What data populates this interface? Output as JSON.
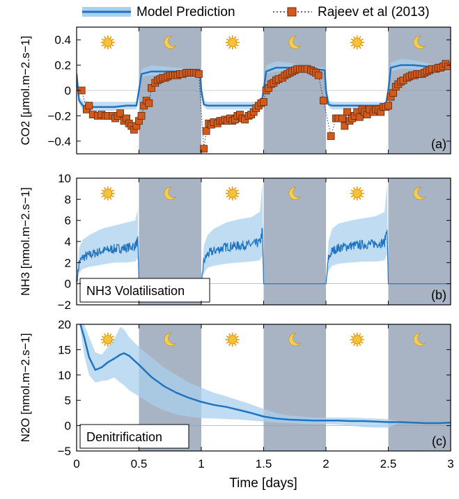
{
  "legend": {
    "model_label": "Model Prediction",
    "obs_label": "Rajeev et al (2013)",
    "model_color": "#1f73c0",
    "band_color": "#a9d0ee",
    "obs_fill": "#d45a1c",
    "obs_stroke": "#5a2a10"
  },
  "night_shade_color": "#a8b3c4",
  "sun_icon": "sun-icon",
  "moon_icon": "moon-icon",
  "xlabel": "Time [days]",
  "xticks": [
    "0",
    "0.5",
    "1",
    "1.5",
    "2",
    "2.5",
    "3"
  ],
  "chart_data": [
    {
      "type": "line",
      "panel": "(a)",
      "ylabel": "CO2 [μmol.m−2.s−1]",
      "ylim": [
        -0.5,
        0.5
      ],
      "yticks": [
        "0.4",
        "0.2",
        "0",
        "−0.2",
        "−0.4"
      ],
      "ytick_values": [
        0.4,
        0.2,
        0,
        -0.2,
        -0.4
      ],
      "xlim": [
        0,
        3
      ],
      "night_periods": [
        [
          0.5,
          1.0
        ],
        [
          1.5,
          2.0
        ],
        [
          2.5,
          3.0
        ]
      ],
      "series": [
        {
          "name": "Model Prediction",
          "x": [
            0,
            0.02,
            0.05,
            0.1,
            0.2,
            0.3,
            0.4,
            0.48,
            0.5,
            0.52,
            0.6,
            0.7,
            0.8,
            0.9,
            0.99,
            1.0,
            1.02,
            1.05,
            1.1,
            1.2,
            1.3,
            1.4,
            1.48,
            1.5,
            1.52,
            1.6,
            1.7,
            1.8,
            1.9,
            1.99,
            2.0,
            2.02,
            2.05,
            2.1,
            2.2,
            2.3,
            2.4,
            2.48,
            2.5,
            2.52,
            2.6,
            2.7,
            2.8,
            2.9,
            3.0
          ],
          "y": [
            0.13,
            -0.08,
            -0.12,
            -0.13,
            -0.13,
            -0.13,
            -0.12,
            -0.12,
            0.0,
            0.13,
            0.15,
            0.15,
            0.15,
            0.15,
            0.15,
            0.0,
            -0.11,
            -0.12,
            -0.12,
            -0.12,
            -0.12,
            -0.12,
            -0.12,
            0.0,
            0.15,
            0.18,
            0.18,
            0.17,
            0.17,
            0.16,
            0.0,
            -0.11,
            -0.12,
            -0.12,
            -0.12,
            -0.12,
            -0.12,
            -0.12,
            0.0,
            0.18,
            0.2,
            0.2,
            0.19,
            0.18,
            0.17
          ],
          "band_lower": [
            0.13,
            -0.1,
            -0.16,
            -0.16,
            -0.16,
            -0.16,
            -0.15,
            -0.15,
            -0.02,
            0.11,
            0.12,
            0.12,
            0.12,
            0.12,
            0.12,
            -0.02,
            -0.13,
            -0.15,
            -0.15,
            -0.15,
            -0.15,
            -0.15,
            -0.15,
            -0.02,
            0.13,
            0.15,
            0.15,
            0.15,
            0.15,
            0.14,
            -0.02,
            -0.13,
            -0.15,
            -0.15,
            -0.15,
            -0.15,
            -0.15,
            -0.15,
            -0.02,
            0.15,
            0.17,
            0.17,
            0.16,
            0.15,
            0.15
          ],
          "band_upper": [
            0.13,
            -0.06,
            -0.08,
            -0.09,
            -0.09,
            -0.09,
            -0.09,
            -0.09,
            0.02,
            0.17,
            0.2,
            0.19,
            0.18,
            0.17,
            0.17,
            0.02,
            -0.08,
            -0.09,
            -0.09,
            -0.09,
            -0.09,
            -0.09,
            -0.09,
            0.02,
            0.2,
            0.23,
            0.22,
            0.2,
            0.19,
            0.18,
            0.02,
            -0.08,
            -0.09,
            -0.09,
            -0.09,
            -0.09,
            -0.09,
            -0.09,
            0.02,
            0.22,
            0.25,
            0.24,
            0.22,
            0.2,
            0.19
          ]
        },
        {
          "name": "Rajeev et al (2013)",
          "x": [
            0.04,
            0.08,
            0.1,
            0.13,
            0.17,
            0.2,
            0.23,
            0.25,
            0.29,
            0.31,
            0.33,
            0.35,
            0.38,
            0.4,
            0.42,
            0.44,
            0.46,
            0.48,
            0.5,
            0.52,
            0.54,
            0.56,
            0.58,
            0.6,
            0.63,
            0.65,
            0.67,
            0.69,
            0.71,
            0.73,
            0.75,
            0.77,
            0.79,
            0.81,
            0.83,
            0.85,
            0.88,
            0.9,
            0.92,
            0.94,
            0.96,
            0.98,
            1.02,
            1.04,
            1.06,
            1.08,
            1.1,
            1.13,
            1.15,
            1.17,
            1.19,
            1.21,
            1.23,
            1.25,
            1.27,
            1.29,
            1.31,
            1.33,
            1.35,
            1.38,
            1.4,
            1.42,
            1.44,
            1.46,
            1.48,
            1.5,
            1.52,
            1.54,
            1.56,
            1.58,
            1.6,
            1.62,
            1.65,
            1.67,
            1.69,
            1.71,
            1.73,
            1.75,
            1.77,
            1.79,
            1.81,
            1.83,
            1.85,
            1.88,
            1.9,
            1.92,
            1.94,
            1.98,
            2.04,
            2.08,
            2.1,
            2.13,
            2.15,
            2.17,
            2.19,
            2.21,
            2.23,
            2.25,
            2.27,
            2.29,
            2.31,
            2.33,
            2.35,
            2.38,
            2.4,
            2.42,
            2.44,
            2.46,
            2.48,
            2.5,
            2.52,
            2.54,
            2.56,
            2.58,
            2.6,
            2.62,
            2.65,
            2.67,
            2.69,
            2.71,
            2.73,
            2.75,
            2.77,
            2.79,
            2.81,
            2.83,
            2.85,
            2.88,
            2.9,
            2.92,
            2.94,
            2.96,
            2.98
          ],
          "y": [
            0.0,
            -0.15,
            -0.12,
            -0.19,
            -0.2,
            -0.19,
            -0.2,
            -0.2,
            -0.2,
            -0.22,
            -0.2,
            -0.18,
            -0.24,
            -0.22,
            -0.26,
            -0.28,
            -0.31,
            -0.28,
            -0.24,
            -0.2,
            -0.12,
            -0.08,
            -0.1,
            0.02,
            0.06,
            0.08,
            0.09,
            0.1,
            0.1,
            0.11,
            0.12,
            0.12,
            0.12,
            0.12,
            0.13,
            0.13,
            0.14,
            0.14,
            0.14,
            0.14,
            0.14,
            0.13,
            -0.46,
            -0.32,
            -0.26,
            -0.27,
            -0.25,
            -0.26,
            -0.24,
            -0.24,
            -0.23,
            -0.24,
            -0.22,
            -0.24,
            -0.23,
            -0.2,
            -0.19,
            -0.22,
            -0.23,
            -0.2,
            -0.19,
            -0.17,
            -0.14,
            -0.12,
            -0.1,
            -0.09,
            0.0,
            0.02,
            0.05,
            0.06,
            0.08,
            0.09,
            0.1,
            0.12,
            0.13,
            0.14,
            0.15,
            0.16,
            0.17,
            0.17,
            0.17,
            0.17,
            0.17,
            0.16,
            0.15,
            0.14,
            0.12,
            -0.08,
            -0.36,
            -0.22,
            -0.22,
            -0.22,
            -0.28,
            -0.17,
            -0.24,
            -0.22,
            -0.2,
            -0.17,
            -0.21,
            -0.15,
            -0.17,
            -0.19,
            -0.15,
            -0.17,
            -0.15,
            -0.15,
            -0.17,
            -0.13,
            -0.13,
            -0.12,
            -0.05,
            -0.02,
            0.03,
            0.05,
            0.07,
            0.08,
            0.1,
            0.11,
            0.12,
            0.12,
            0.13,
            0.13,
            0.13,
            0.14,
            0.15,
            0.16,
            0.17,
            0.17,
            0.18,
            0.18,
            0.19,
            0.21,
            0.19
          ]
        }
      ]
    },
    {
      "type": "line",
      "panel": "(b)",
      "ylabel": "NH3 [nmol.m−2.s−1]",
      "annotation": "NH3 Volatilisation",
      "ylim": [
        -2,
        10
      ],
      "yticks": [
        "10",
        "8",
        "6",
        "4",
        "2",
        "0",
        "−2"
      ],
      "ytick_values": [
        10,
        8,
        6,
        4,
        2,
        0,
        -2
      ],
      "xlim": [
        0,
        3
      ],
      "night_periods": [
        [
          0.5,
          1.0
        ],
        [
          1.5,
          2.0
        ],
        [
          2.5,
          3.0
        ]
      ],
      "series": [
        {
          "name": "Model Prediction",
          "x": [
            0,
            0.02,
            0.05,
            0.1,
            0.2,
            0.3,
            0.4,
            0.47,
            0.49,
            0.5,
            0.6,
            0.7,
            0.8,
            0.9,
            1.0,
            1.02,
            1.05,
            1.1,
            1.2,
            1.3,
            1.4,
            1.47,
            1.49,
            1.5,
            1.6,
            1.7,
            1.8,
            1.9,
            2.0,
            2.02,
            2.05,
            2.1,
            2.2,
            2.3,
            2.4,
            2.47,
            2.49,
            2.5,
            2.6,
            2.7,
            2.8,
            2.9,
            3.0
          ],
          "y": [
            0,
            2.0,
            2.5,
            2.7,
            3.1,
            3.3,
            3.4,
            3.6,
            4.1,
            0,
            0,
            0,
            0,
            0,
            0,
            2.1,
            2.8,
            3.1,
            3.5,
            3.6,
            3.7,
            3.9,
            5.0,
            0,
            0,
            0,
            0,
            0,
            0,
            2.4,
            3.1,
            3.4,
            3.6,
            3.7,
            3.8,
            3.9,
            5.4,
            0,
            0,
            0,
            0,
            0,
            0
          ],
          "band_lower": [
            0,
            1.0,
            1.4,
            1.6,
            1.8,
            2.0,
            2.0,
            2.1,
            2.4,
            0,
            0,
            0,
            0,
            0,
            0,
            1.0,
            1.5,
            1.7,
            1.9,
            2.0,
            2.1,
            2.2,
            2.6,
            0,
            0,
            0,
            0,
            0,
            0,
            1.2,
            1.7,
            1.9,
            2.0,
            2.1,
            2.1,
            2.2,
            2.8,
            0,
            0,
            0,
            0,
            0,
            0
          ],
          "band_upper": [
            0,
            3.4,
            4.2,
            4.6,
            5.2,
            5.5,
            5.8,
            6.0,
            7.0,
            0,
            0,
            0,
            0,
            0,
            0,
            3.6,
            4.6,
            5.2,
            5.8,
            6.1,
            6.3,
            6.8,
            9.5,
            0,
            0,
            0,
            0,
            0,
            0,
            4.0,
            5.2,
            5.7,
            6.0,
            6.2,
            6.4,
            6.8,
            9.4,
            0,
            0,
            0,
            0,
            0,
            0
          ],
          "noise_amplitude": 0.45
        }
      ]
    },
    {
      "type": "line",
      "panel": "(c)",
      "ylabel": "N2O [nmol.m−2.s−1]",
      "annotation": "Denitrification",
      "ylim": [
        -5,
        20
      ],
      "yticks": [
        "20",
        "15",
        "10",
        "5",
        "0",
        "−5"
      ],
      "ytick_values": [
        20,
        15,
        10,
        5,
        0,
        -5
      ],
      "xlim": [
        0,
        3
      ],
      "night_periods": [
        [
          0.5,
          1.0
        ],
        [
          1.5,
          2.0
        ],
        [
          2.5,
          3.0
        ]
      ],
      "series": [
        {
          "name": "Model Prediction",
          "x": [
            0.03,
            0.06,
            0.1,
            0.15,
            0.2,
            0.25,
            0.3,
            0.35,
            0.38,
            0.42,
            0.5,
            0.6,
            0.7,
            0.8,
            0.9,
            1.0,
            1.1,
            1.2,
            1.3,
            1.4,
            1.5,
            1.6,
            1.7,
            1.8,
            1.9,
            2.0,
            2.1,
            2.2,
            2.3,
            2.4,
            2.5,
            2.6,
            2.7,
            2.8,
            2.9,
            3.0
          ],
          "y": [
            20,
            17.5,
            13.5,
            11.0,
            11.5,
            12.5,
            13.2,
            14.0,
            14.3,
            13.8,
            12.0,
            9.6,
            7.8,
            6.5,
            5.5,
            4.7,
            4.1,
            3.7,
            3.1,
            2.5,
            1.8,
            1.4,
            1.2,
            1.1,
            1.0,
            1.0,
            1.0,
            0.9,
            0.9,
            0.8,
            0.7,
            0.7,
            0.6,
            0.5,
            0.5,
            0.6
          ],
          "band_lower": [
            19,
            14.0,
            10.0,
            8.5,
            8.8,
            9.0,
            9.5,
            8.5,
            8.0,
            7.0,
            5.8,
            4.2,
            3.0,
            2.2,
            1.8,
            1.5,
            1.4,
            1.3,
            1.2,
            1.0,
            0.8,
            0.6,
            0.5,
            0.4,
            0.3,
            0.3,
            0.2,
            0.0,
            -0.3,
            -0.4,
            -0.4,
            0.6,
            0.5,
            0.4,
            0.4,
            0.5
          ],
          "band_upper": [
            20,
            20,
            17.5,
            14.5,
            14.0,
            15.5,
            17.0,
            19.5,
            19.0,
            17.5,
            15.5,
            13.5,
            11.5,
            10.0,
            8.5,
            7.5,
            6.5,
            5.8,
            5.0,
            4.2,
            3.3,
            2.5,
            2.0,
            1.8,
            1.6,
            1.6,
            1.6,
            1.6,
            1.5,
            1.4,
            1.3,
            0.8,
            0.7,
            0.6,
            0.6,
            0.7
          ]
        }
      ]
    }
  ]
}
